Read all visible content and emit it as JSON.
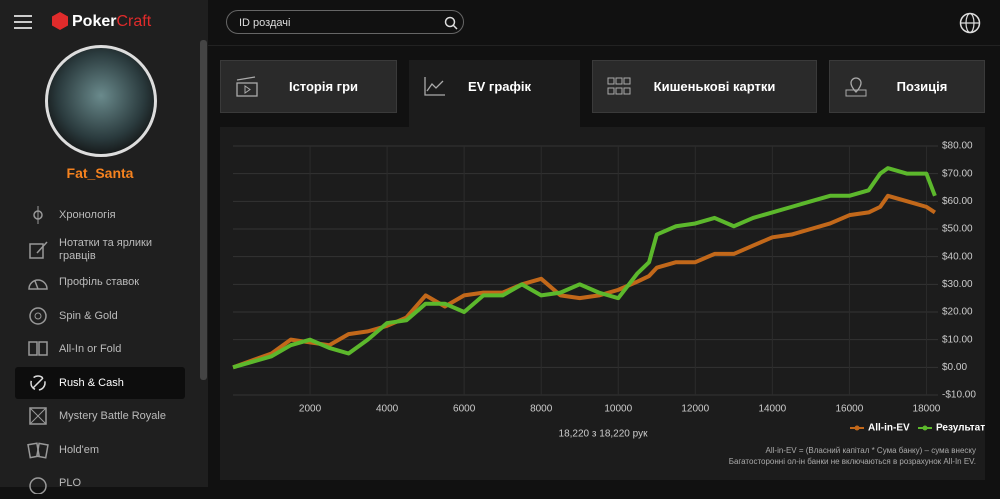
{
  "header": {
    "logo_left": "Poker",
    "logo_right": "Craft",
    "search_placeholder": "ID роздачі"
  },
  "profile": {
    "name": "Fat_Santa"
  },
  "nav": [
    "Хронологія",
    "Нотатки та ярлики гравців",
    "Профіль ставок",
    "Spin & Gold",
    "All-In or Fold",
    "Rush & Cash",
    "Mystery Battle Royale",
    "Hold'em",
    "PLO"
  ],
  "tabs": [
    "Історія гри",
    "EV графік",
    "Кишенькові картки",
    "Позиція"
  ],
  "chart_data": {
    "type": "line",
    "x": [
      0,
      1000,
      1500,
      2000,
      2500,
      3000,
      3500,
      4000,
      4500,
      5000,
      5500,
      6000,
      6500,
      7000,
      7500,
      8000,
      8500,
      9000,
      9500,
      10000,
      10500,
      10800,
      11000,
      11500,
      12000,
      12500,
      13000,
      13500,
      14000,
      14500,
      15000,
      15500,
      16000,
      16500,
      16800,
      17000,
      17500,
      18000,
      18220
    ],
    "series": [
      {
        "name": "All-in-EV",
        "color": "#c2681a",
        "values": [
          0,
          5,
          10,
          9,
          8,
          12,
          13,
          15,
          18,
          26,
          22,
          26,
          27,
          27,
          30,
          32,
          26,
          25,
          26,
          28,
          31,
          33,
          36,
          38,
          38,
          41,
          41,
          44,
          47,
          48,
          50,
          52,
          55,
          56,
          58,
          62,
          60,
          58,
          56
        ]
      },
      {
        "name": "Результат",
        "color": "#5cb82c",
        "values": [
          0,
          4,
          8,
          10,
          7,
          5,
          10,
          16,
          17,
          23,
          23,
          20,
          26,
          26,
          30,
          26,
          27,
          30,
          27,
          25,
          34,
          38,
          48,
          51,
          52,
          54,
          51,
          54,
          56,
          58,
          60,
          62,
          62,
          64,
          70,
          72,
          70,
          70,
          62
        ]
      }
    ],
    "xlim": [
      0,
      18300
    ],
    "xticks": [
      2000,
      4000,
      6000,
      8000,
      10000,
      12000,
      14000,
      16000,
      18000
    ],
    "ylim": [
      -10,
      80
    ],
    "yticks": [
      {
        "value": 80,
        "label": "$80.00"
      },
      {
        "value": 70,
        "label": "$70.00"
      },
      {
        "value": 60,
        "label": "$60.00"
      },
      {
        "value": 50,
        "label": "$50.00"
      },
      {
        "value": 40,
        "label": "$40.00"
      },
      {
        "value": 30,
        "label": "$30.00"
      },
      {
        "value": 20,
        "label": "$20.00"
      },
      {
        "value": 10,
        "label": "$10.00"
      },
      {
        "value": 0,
        "label": "$0.00"
      },
      {
        "value": -10,
        "label": "-$10.00"
      }
    ],
    "grid": true
  },
  "hands_count": "18,220 з 18,220 рук",
  "notes": [
    "All-in-EV = (Власний капітал * Сума банку) – сума внеску",
    "Багатосторонні ол-ін банки не включаються в розрахунок All-In EV."
  ]
}
